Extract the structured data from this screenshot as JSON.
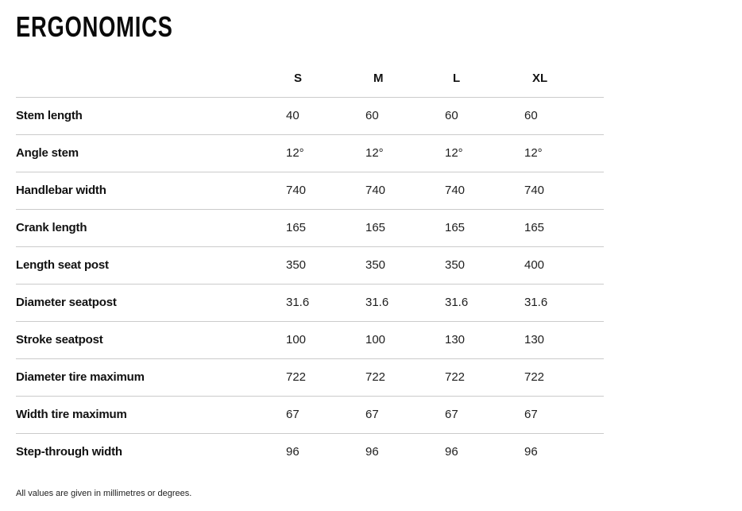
{
  "page": {
    "title": "ERGONOMICS",
    "footnote": "All values are given in millimetres or degrees."
  },
  "table": {
    "size_headers": [
      "S",
      "M",
      "L",
      "XL"
    ],
    "rows": [
      {
        "label": "Stem length",
        "values": [
          "40",
          "60",
          "60",
          "60"
        ]
      },
      {
        "label": "Angle stem",
        "values": [
          "12°",
          "12°",
          "12°",
          "12°"
        ]
      },
      {
        "label": "Handlebar width",
        "values": [
          "740",
          "740",
          "740",
          "740"
        ]
      },
      {
        "label": "Crank length",
        "values": [
          "165",
          "165",
          "165",
          "165"
        ]
      },
      {
        "label": "Length seat post",
        "values": [
          "350",
          "350",
          "350",
          "400"
        ]
      },
      {
        "label": "Diameter seatpost",
        "values": [
          "31.6",
          "31.6",
          "31.6",
          "31.6"
        ]
      },
      {
        "label": "Stroke seatpost",
        "values": [
          "100",
          "100",
          "130",
          "130"
        ]
      },
      {
        "label": "Diameter tire maximum",
        "values": [
          "722",
          "722",
          "722",
          "722"
        ]
      },
      {
        "label": "Width tire maximum",
        "values": [
          "67",
          "67",
          "67",
          "67"
        ]
      },
      {
        "label": "Step-through width",
        "values": [
          "96",
          "96",
          "96",
          "96"
        ]
      }
    ]
  },
  "colors": {
    "background": "#ffffff",
    "heading_text": "#0a0a0a",
    "label_text": "#111111",
    "value_text": "#1e1e1e",
    "divider": "#cbcbcb"
  }
}
